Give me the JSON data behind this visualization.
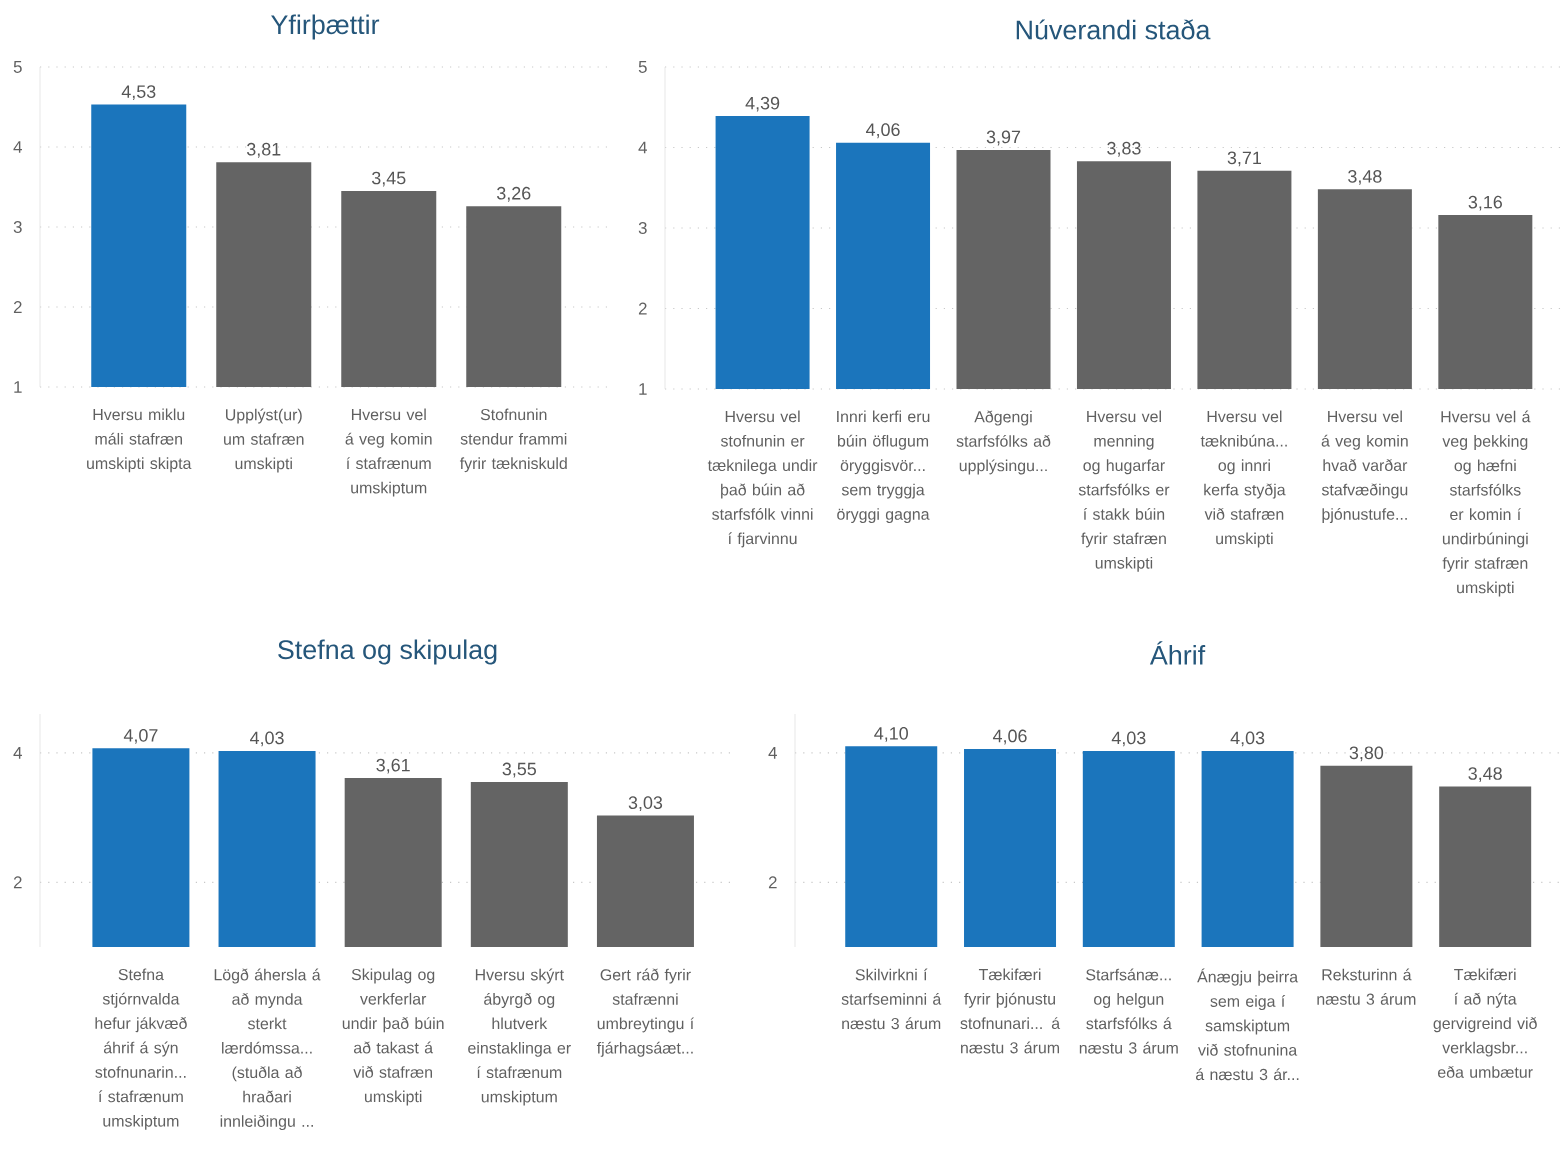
{
  "chart_data": [
    {
      "type": "bar",
      "title": "Yfirþættir",
      "categories": [
        "Hversu miklu máli stafræn umskipti skipta",
        "Upplýst(ur) um stafræn umskipti",
        "Hversu vel á veg komin í stafrænum umskiptum",
        "Stofnunin stendur frammi fyrir tækniskuld"
      ],
      "values": [
        4.53,
        3.81,
        3.45,
        3.26
      ],
      "value_labels": [
        "4,53",
        "3,81",
        "3,45",
        "3,26"
      ],
      "colors": [
        "#1b75bc",
        "#646464",
        "#646464",
        "#646464"
      ],
      "ylim": [
        1,
        5
      ],
      "yticks": [
        1,
        2,
        3,
        4,
        5
      ],
      "grid": "y"
    },
    {
      "type": "bar",
      "title": "Núverandi staða",
      "categories": [
        "Hversu vel stofnunin er tæknilega undir það búin að starfsfólk vinni í fjarvinnu",
        "Innri kerfi eru búin öflugum öryggisvör... sem tryggja öryggi gagna",
        "Aðgengi starfsfólks að upplýsingu...",
        "Hversu vel menning og hugarfar starfsfólks er í stakk búin fyrir stafræn umskipti",
        "Hversu vel tæknibúna... og innri kerfa styðja við stafræn umskipti",
        "Hversu vel á veg komin hvað varðar stafvæðingu þjónustufe...",
        "Hversu vel á veg þekking og hæfni starfsfólks er komin í undirbúningi fyrir stafræn umskipti"
      ],
      "values": [
        4.39,
        4.06,
        3.97,
        3.83,
        3.71,
        3.48,
        3.16
      ],
      "value_labels": [
        "4,39",
        "4,06",
        "3,97",
        "3,83",
        "3,71",
        "3,48",
        "3,16"
      ],
      "colors": [
        "#1b75bc",
        "#1b75bc",
        "#646464",
        "#646464",
        "#646464",
        "#646464",
        "#646464"
      ],
      "ylim": [
        1,
        5
      ],
      "yticks": [
        1,
        2,
        3,
        4,
        5
      ],
      "grid": "y"
    },
    {
      "type": "bar",
      "title": "Stefna og skipulag",
      "categories": [
        "Stefna stjórnvalda hefur jákvæð áhrif á sýn stofnunarin... í stafrænum umskiptum",
        "Lögð áhersla á að mynda sterkt lærdómssa... (stuðla að hraðari innleiðingu ...",
        "Skipulag og verkferlar undir það búin að takast á við stafræn umskipti",
        "Hversu skýrt ábyrgð og hlutverk einstaklinga er í stafrænum umskiptum",
        "Gert ráð fyrir stafrænni umbreytingu í fjárhagsáæt..."
      ],
      "values": [
        4.07,
        4.03,
        3.61,
        3.55,
        3.03
      ],
      "value_labels": [
        "4,07",
        "4,03",
        "3,61",
        "3,55",
        "3,03"
      ],
      "colors": [
        "#1b75bc",
        "#1b75bc",
        "#646464",
        "#646464",
        "#646464"
      ],
      "ylim": [
        1,
        4.6
      ],
      "yticks": [
        2,
        4
      ],
      "grid": "y"
    },
    {
      "type": "bar",
      "title": "Áhrif",
      "categories": [
        "Skilvirkni í starfseminni á næstu 3 árum",
        "Tækifæri fyrir þjónustu stofnunari... á næstu 3 árum",
        "Starfsánæ... og helgun starfsfólks á næstu 3 árum",
        "Ánægju þeirra sem eiga í samskiptum við stofnunina á næstu 3 ár...",
        "Reksturinn á næstu 3 árum",
        "Tækifæri í að nýta gervigreind við verklagsbr... eða umbætur"
      ],
      "values": [
        4.1,
        4.06,
        4.03,
        4.03,
        3.8,
        3.48
      ],
      "value_labels": [
        "4,10",
        "4,06",
        "4,03",
        "4,03",
        "3,80",
        "3,48"
      ],
      "colors": [
        "#1b75bc",
        "#1b75bc",
        "#1b75bc",
        "#1b75bc",
        "#646464",
        "#646464"
      ],
      "ylim": [
        1,
        4.6
      ],
      "yticks": [
        2,
        4
      ],
      "grid": "y"
    }
  ]
}
